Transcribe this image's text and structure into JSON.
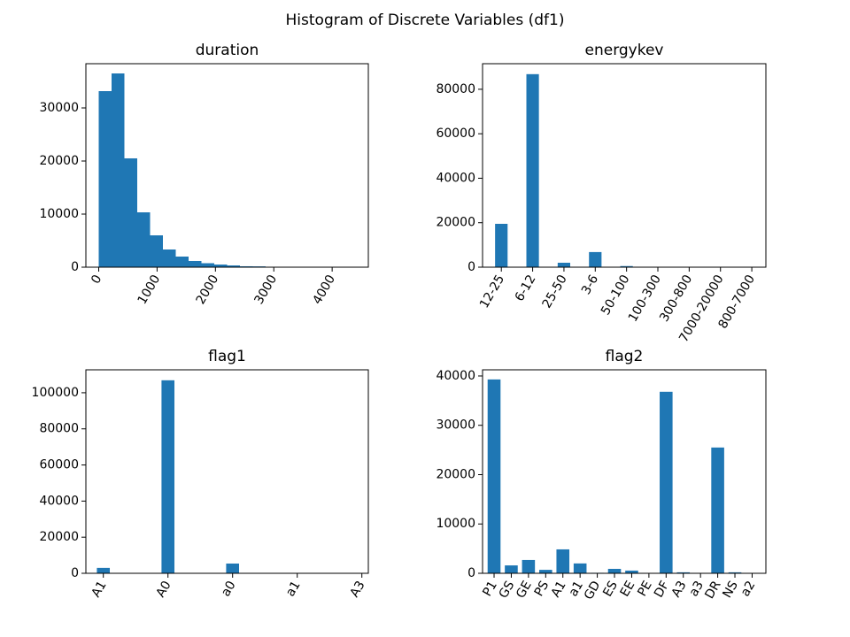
{
  "title": "Histogram of Discrete Variables (df1)",
  "chart_data": [
    {
      "type": "histogram",
      "title": "duration",
      "color": "#1f77b4",
      "bins": [
        0,
        220,
        440,
        660,
        880,
        1100,
        1320,
        1540,
        1760,
        1980,
        2200,
        2420,
        2640,
        2860,
        3080,
        3300,
        3520,
        3740,
        3960,
        4180,
        4400
      ],
      "values": [
        33167,
        36500,
        20500,
        10333,
        6000,
        3333,
        2000,
        1167,
        750,
        500,
        333,
        170,
        150,
        80,
        50,
        30,
        20,
        10,
        5,
        5
      ],
      "xlim": [
        -220,
        4620
      ],
      "xticks": [
        0,
        1000,
        2000,
        3000,
        4000
      ],
      "ylim": [
        0,
        38333
      ],
      "yticks": [
        0,
        10000,
        20000,
        30000
      ]
    },
    {
      "type": "bar",
      "title": "energykev",
      "color": "#1f77b4",
      "categories": [
        "12-25",
        "6-12",
        "25-50",
        "3-6",
        "50-100",
        "100-300",
        "300-800",
        "7000-20000",
        "800-7000"
      ],
      "values": [
        19500,
        86800,
        2000,
        6800,
        500,
        100,
        50,
        20,
        30
      ],
      "xlim": [
        -0.6,
        8.45
      ],
      "ylim": [
        0,
        91500
      ],
      "yticks": [
        0,
        20000,
        40000,
        60000,
        80000
      ]
    },
    {
      "type": "bar",
      "title": "flag1",
      "color": "#1f77b4",
      "categories": [
        "A1",
        "A0",
        "a0",
        "a1",
        "A3"
      ],
      "values": [
        3000,
        106900,
        5400,
        100,
        50
      ],
      "xlim": [
        -0.27,
        4.1
      ],
      "ylim": [
        0,
        112700
      ],
      "yticks": [
        0,
        20000,
        40000,
        60000,
        80000,
        100000
      ]
    },
    {
      "type": "bar",
      "title": "flag2",
      "color": "#1f77b4",
      "categories": [
        "P1",
        "GS",
        "GE",
        "PS",
        "A1",
        "a1",
        "GD",
        "ES",
        "EE",
        "PE",
        "DF",
        "A3",
        "a3",
        "DR",
        "NS",
        "a2"
      ],
      "values": [
        39300,
        1600,
        2700,
        700,
        4850,
        2000,
        100,
        900,
        550,
        50,
        36800,
        200,
        20,
        25500,
        200,
        30
      ],
      "xlim": [
        -0.67,
        15.8
      ],
      "ylim": [
        0,
        41250
      ],
      "yticks": [
        0,
        10000,
        20000,
        30000,
        40000
      ]
    }
  ]
}
